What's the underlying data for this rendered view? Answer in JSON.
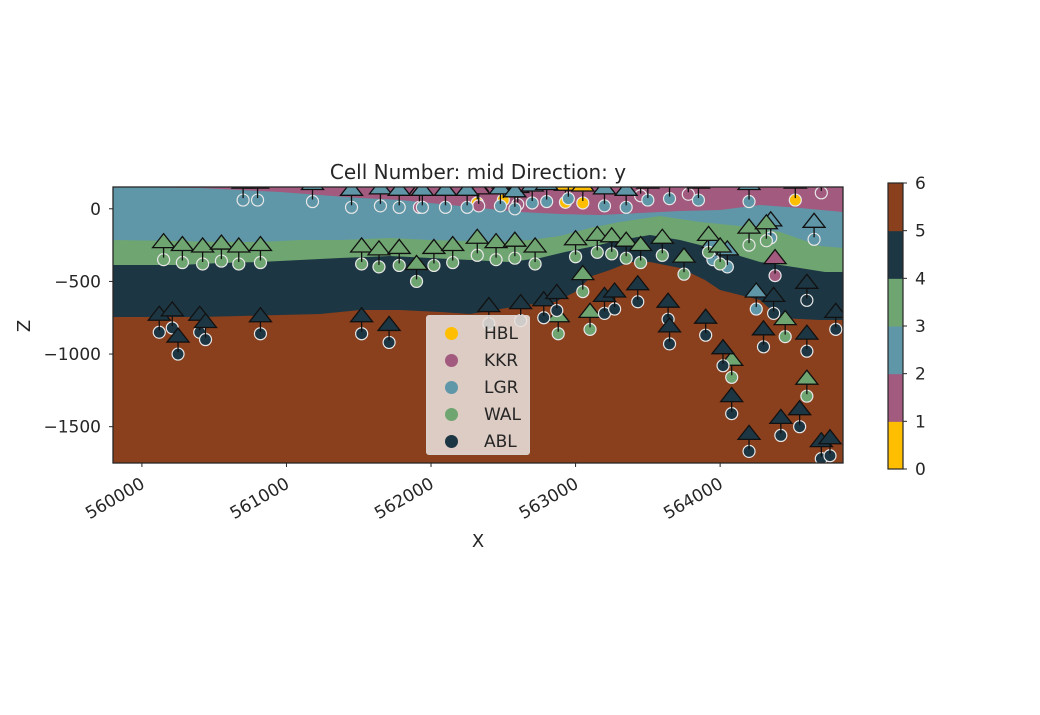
{
  "chart_data": {
    "type": "scatter",
    "title": "Cell Number: mid Direction: y",
    "xlabel": "X",
    "ylabel": "Z",
    "xlim": [
      559800,
      564850
    ],
    "ylim": [
      -1750,
      150
    ],
    "x_ticks": [
      "560000",
      "561000",
      "562000",
      "563000",
      "564000"
    ],
    "x_tick_values": [
      560000,
      561000,
      562000,
      563000,
      564000
    ],
    "y_ticks": [
      "0",
      "−500",
      "−1000",
      "−1500"
    ],
    "y_tick_values": [
      0,
      -500,
      -1000,
      -1500
    ],
    "grid": false,
    "legend_position": "lower-center",
    "legend": [
      {
        "name": "HBL",
        "color": "#ffbe00"
      },
      {
        "name": "KKR",
        "color": "#a25a7f"
      },
      {
        "name": "LGR",
        "color": "#5f97a8"
      },
      {
        "name": "WAL",
        "color": "#6fa571"
      },
      {
        "name": "ABL",
        "color": "#1d3643"
      }
    ],
    "colorbar": {
      "ticks": [
        "0",
        "1",
        "2",
        "3",
        "4",
        "5",
        "6"
      ],
      "tick_values": [
        0,
        1,
        2,
        3,
        4,
        5,
        6
      ],
      "segments": [
        "#ffbe00",
        "#a25a7f",
        "#5f97a8",
        "#6fa571",
        "#1d3643",
        "#8a3f1d"
      ]
    },
    "layer_colors": {
      "basement": "#8a3f1d",
      "ABL": "#1d3643",
      "WAL": "#6fa571",
      "LGR": "#5f97a8",
      "KKR": "#a25a7f",
      "HBL": "#ffbe00"
    },
    "surface_points": {
      "HBL": [
        [
          562320,
          40
        ],
        [
          562500,
          60
        ],
        [
          562930,
          45
        ],
        [
          563050,
          40
        ],
        [
          564520,
          60
        ]
      ],
      "KKR": [
        [
          561920,
          10
        ],
        [
          562330,
          20
        ],
        [
          562600,
          30
        ],
        [
          563450,
          90
        ],
        [
          563780,
          100
        ],
        [
          564380,
          -460
        ],
        [
          564700,
          110
        ]
      ],
      "LGR": [
        [
          560700,
          60
        ],
        [
          560800,
          60
        ],
        [
          561180,
          50
        ],
        [
          561450,
          10
        ],
        [
          561650,
          20
        ],
        [
          561780,
          10
        ],
        [
          561940,
          10
        ],
        [
          562100,
          10
        ],
        [
          562250,
          10
        ],
        [
          562480,
          20
        ],
        [
          562580,
          0
        ],
        [
          562700,
          40
        ],
        [
          562800,
          50
        ],
        [
          562950,
          70
        ],
        [
          563200,
          20
        ],
        [
          563350,
          10
        ],
        [
          563500,
          60
        ],
        [
          563650,
          70
        ],
        [
          563850,
          60
        ],
        [
          563950,
          -350
        ],
        [
          564050,
          -400
        ],
        [
          564200,
          50
        ],
        [
          564250,
          -690
        ],
        [
          564350,
          -200
        ],
        [
          564650,
          -210
        ]
      ],
      "WAL": [
        [
          560150,
          -350
        ],
        [
          560280,
          -370
        ],
        [
          560420,
          -380
        ],
        [
          560550,
          -360
        ],
        [
          560670,
          -380
        ],
        [
          560820,
          -370
        ],
        [
          561520,
          -380
        ],
        [
          561640,
          -400
        ],
        [
          561780,
          -390
        ],
        [
          561900,
          -500
        ],
        [
          562020,
          -390
        ],
        [
          562150,
          -370
        ],
        [
          562320,
          -320
        ],
        [
          562450,
          -350
        ],
        [
          562580,
          -340
        ],
        [
          562720,
          -380
        ],
        [
          562880,
          -860
        ],
        [
          563000,
          -330
        ],
        [
          563050,
          -570
        ],
        [
          563100,
          -830
        ],
        [
          563150,
          -300
        ],
        [
          563250,
          -310
        ],
        [
          563350,
          -340
        ],
        [
          563450,
          -370
        ],
        [
          563600,
          -320
        ],
        [
          563750,
          -450
        ],
        [
          563920,
          -300
        ],
        [
          564000,
          -380
        ],
        [
          564080,
          -1160
        ],
        [
          564200,
          -250
        ],
        [
          564320,
          -220
        ],
        [
          564450,
          -880
        ],
        [
          564600,
          -1290
        ]
      ],
      "ABL": [
        [
          560120,
          -850
        ],
        [
          560210,
          -820
        ],
        [
          560400,
          -850
        ],
        [
          560440,
          -900
        ],
        [
          560250,
          -1000
        ],
        [
          560820,
          -860
        ],
        [
          561520,
          -860
        ],
        [
          561710,
          -920
        ],
        [
          562400,
          -790
        ],
        [
          562620,
          -770
        ],
        [
          562780,
          -750
        ],
        [
          562870,
          -700
        ],
        [
          563200,
          -720
        ],
        [
          563270,
          -690
        ],
        [
          563430,
          -640
        ],
        [
          563640,
          -760
        ],
        [
          563650,
          -930
        ],
        [
          563900,
          -870
        ],
        [
          564020,
          -1080
        ],
        [
          564080,
          -1410
        ],
        [
          564200,
          -1670
        ],
        [
          564300,
          -950
        ],
        [
          564370,
          -720
        ],
        [
          564420,
          -1560
        ],
        [
          564550,
          -1500
        ],
        [
          564600,
          -630
        ],
        [
          564600,
          -980
        ],
        [
          564700,
          -1720
        ],
        [
          564800,
          -830
        ],
        [
          564760,
          -1700
        ]
      ]
    }
  }
}
